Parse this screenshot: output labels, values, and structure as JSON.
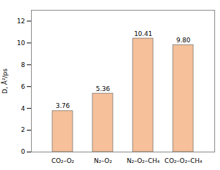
{
  "chart_data": {
    "type": "bar",
    "categories": [
      "CO₂–O₂",
      "N₂–O₂",
      "N₂–O₂–CH₄",
      "CO₂–O₂–CH₄"
    ],
    "values": [
      3.76,
      5.36,
      10.41,
      9.8
    ],
    "value_labels": [
      "3.76",
      "5.36",
      "10.41",
      "9.80"
    ],
    "data_labels": true,
    "color": "#F5C09A",
    "ylabel": "D, Å²/ps",
    "ylim": [
      0,
      13
    ],
    "yticks": [
      0,
      2,
      4,
      6,
      8,
      10,
      12
    ]
  }
}
